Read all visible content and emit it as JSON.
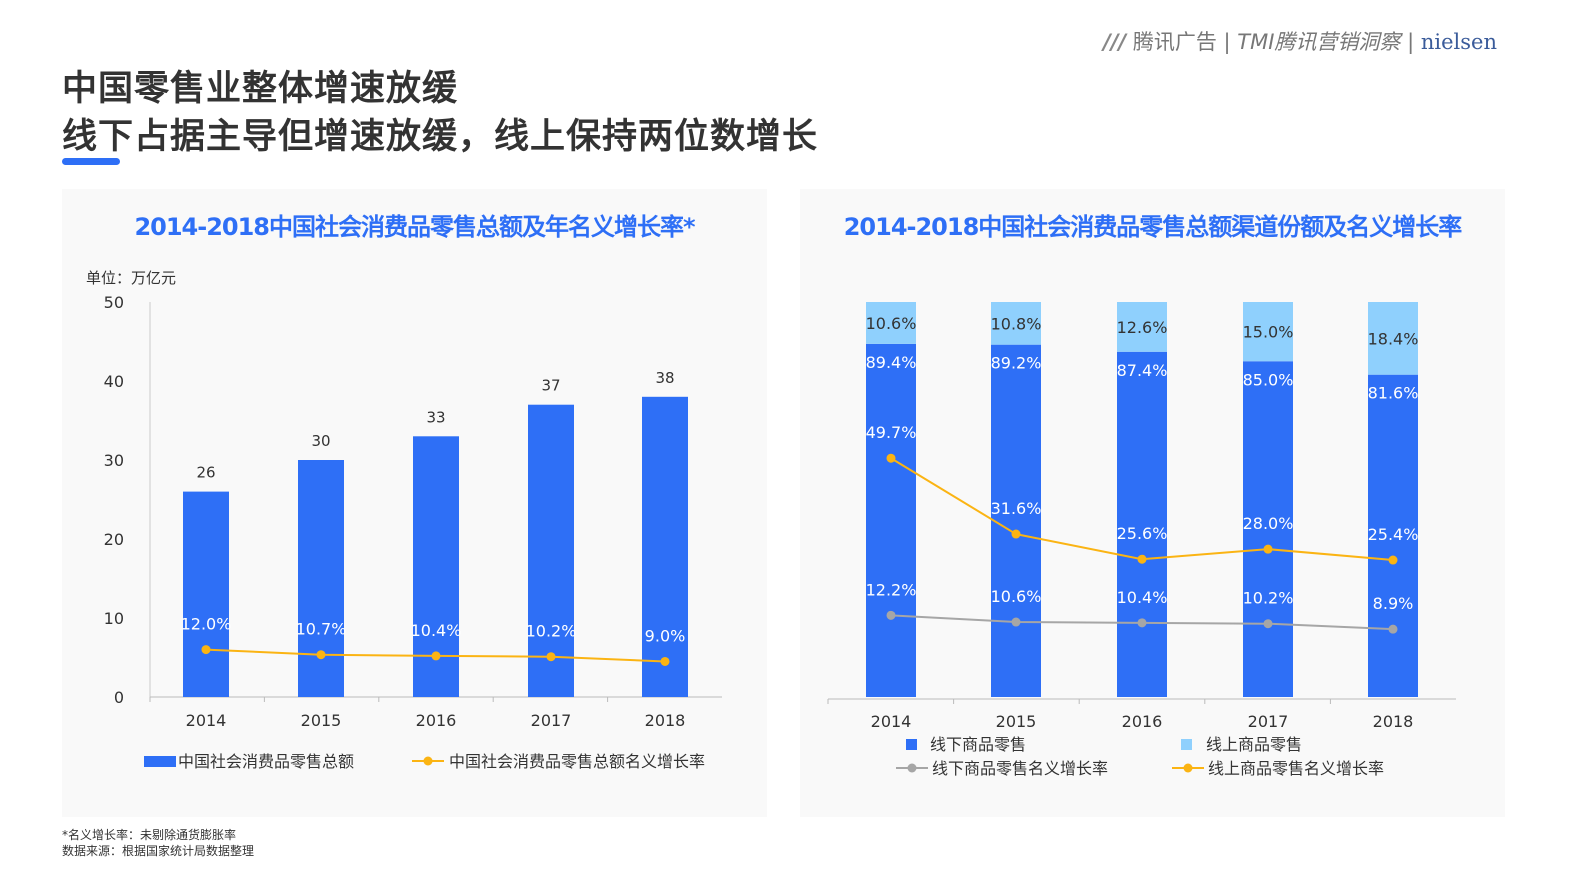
{
  "header": {
    "title_line1": "中国零售业整体增速放缓",
    "title_line2": "线下占据主导但增速放缓，线上保持两位数增长",
    "logo": {
      "part1": "腾讯广告",
      "part2": "TMI腾讯营销洞察",
      "part3": "nielsen"
    }
  },
  "colors": {
    "accent": "#2e6ff6",
    "bar": "#2e6ff6",
    "bar_light": "#8fd0fd",
    "line_orange": "#fbb413",
    "line_gray": "#a6a6a6"
  },
  "chart_data": [
    {
      "type": "bar",
      "title": "2014-2018中国社会消费品零售总额及年名义增长率*",
      "unit_label": "单位：万亿元",
      "categories": [
        "2014",
        "2015",
        "2016",
        "2017",
        "2018"
      ],
      "ylim": [
        0,
        50
      ],
      "yticks": [
        "0",
        "10",
        "20",
        "30",
        "40",
        "50"
      ],
      "y2lim": [
        0,
        100
      ],
      "series": [
        {
          "name": "中国社会消费品零售总额",
          "kind": "bar",
          "values": [
            26,
            30,
            33,
            37,
            38
          ],
          "labels": [
            "26",
            "30",
            "33",
            "37",
            "38"
          ]
        },
        {
          "name": "中国社会消费品零售总额名义增长率",
          "kind": "line",
          "axis": "secondary",
          "values": [
            12.0,
            10.7,
            10.4,
            10.2,
            9.0
          ],
          "labels": [
            "12.0%",
            "10.7%",
            "10.4%",
            "10.2%",
            "9.0%"
          ]
        }
      ],
      "legend": "bottom"
    },
    {
      "type": "bar",
      "stacked": true,
      "title": "2014-2018中国社会消费品零售总额渠道份额及名义增长率",
      "categories": [
        "2014",
        "2015",
        "2016",
        "2017",
        "2018"
      ],
      "ylim": [
        0,
        100
      ],
      "y2lim": [
        -7.3,
        87
      ],
      "series": [
        {
          "name": "线下商品零售",
          "kind": "bar",
          "values": [
            89.4,
            89.2,
            87.4,
            85.0,
            81.6
          ],
          "labels": [
            "89.4%",
            "89.2%",
            "87.4%",
            "85.0%",
            "81.6%"
          ]
        },
        {
          "name": "线上商品零售",
          "kind": "bar",
          "values": [
            10.6,
            10.8,
            12.6,
            15.0,
            18.4
          ],
          "labels": [
            "10.6%",
            "10.8%",
            "12.6%",
            "15.0%",
            "18.4%"
          ]
        },
        {
          "name": "线下商品零售名义增长率",
          "kind": "line",
          "axis": "secondary",
          "values": [
            12.2,
            10.6,
            10.4,
            10.2,
            8.9
          ],
          "labels": [
            "12.2%",
            "10.6%",
            "10.4%",
            "10.2%",
            "8.9%"
          ]
        },
        {
          "name": "线上商品零售名义增长率",
          "kind": "line",
          "axis": "secondary",
          "values": [
            49.7,
            31.6,
            25.6,
            28.0,
            25.4
          ],
          "labels": [
            "49.7%",
            "31.6%",
            "25.6%",
            "28.0%",
            "25.4%"
          ]
        }
      ],
      "legend": "bottom"
    }
  ],
  "footnotes": [
    "*名义增长率：未剔除通货膨胀率",
    "数据来源：根据国家统计局数据整理"
  ]
}
